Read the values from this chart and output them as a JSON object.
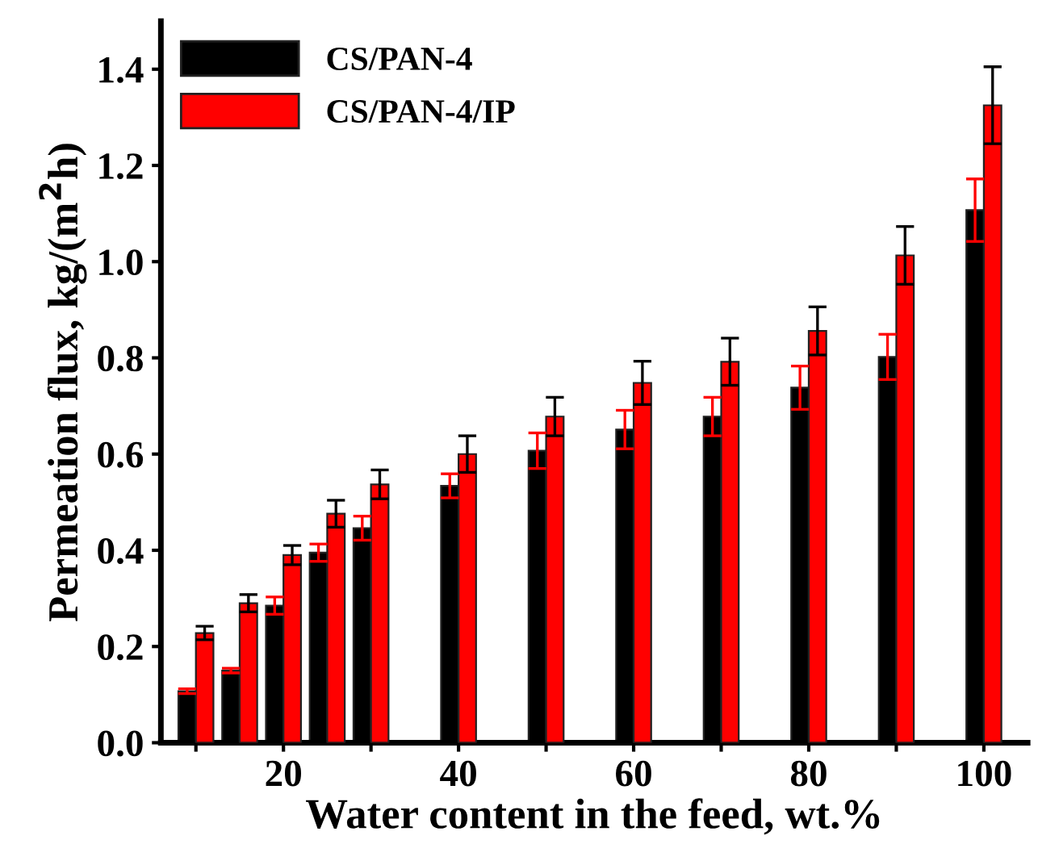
{
  "chart_data": {
    "type": "bar",
    "xlabel": "Water content in the feed, wt.%",
    "ylabel": "Permeation flux, kg/(m$^{2}$h)",
    "x": [
      10,
      15,
      20,
      25,
      30,
      40,
      50,
      60,
      70,
      80,
      90,
      100
    ],
    "series": [
      {
        "name": "CS/PAN-4",
        "color": "#000000",
        "values": [
          0.107,
          0.15,
          0.285,
          0.395,
          0.446,
          0.534,
          0.607,
          0.651,
          0.678,
          0.738,
          0.802,
          1.107
        ],
        "errors": [
          0.005,
          0.005,
          0.018,
          0.018,
          0.025,
          0.025,
          0.037,
          0.04,
          0.04,
          0.045,
          0.047,
          0.065
        ]
      },
      {
        "name": "CS/PAN-4/IP",
        "color": "#ff0000",
        "values": [
          0.228,
          0.29,
          0.39,
          0.476,
          0.537,
          0.6,
          0.678,
          0.748,
          0.792,
          0.856,
          1.013,
          1.325
        ],
        "errors": [
          0.014,
          0.018,
          0.02,
          0.028,
          0.03,
          0.038,
          0.04,
          0.045,
          0.049,
          0.05,
          0.06,
          0.08
        ]
      }
    ],
    "xlim": [
      6,
      105
    ],
    "xticks": [
      {
        "value": 10,
        "label": null
      },
      20,
      {
        "value": 30,
        "label": null
      },
      40,
      {
        "value": 50,
        "label": null
      },
      60,
      {
        "value": 70,
        "label": null
      },
      80,
      {
        "value": 90,
        "label": null
      },
      100
    ],
    "ylim": [
      0,
      1.5
    ],
    "yticks": [
      {
        "value": 0,
        "label": "0.0"
      },
      0.2,
      0.4,
      0.6,
      0.8,
      {
        "value": 1,
        "label": "1.0"
      },
      1.2,
      1.4
    ],
    "grid": false,
    "legend": "top left"
  }
}
